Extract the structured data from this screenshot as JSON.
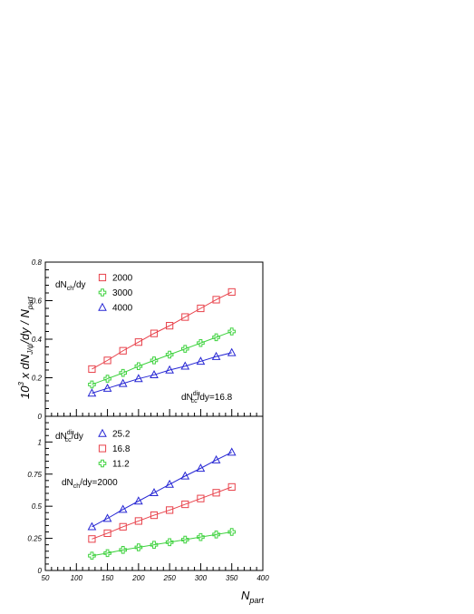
{
  "chart_data": [
    {
      "type": "line",
      "panel": "top",
      "ylabel": "10^3 x dN_J/ψ/dy / N_part",
      "ylabel_parts": {
        "pre": "10",
        "exp": "3",
        "mid": " x dN",
        "sub": "J/ψ",
        "post": "/dy / N",
        "sub2": "part"
      },
      "x": [
        125,
        150,
        175,
        200,
        225,
        250,
        275,
        300,
        325,
        350
      ],
      "xlim": [
        50,
        400
      ],
      "ylim": [
        0,
        0.8
      ],
      "yticks": [
        0,
        0.2,
        0.4,
        0.6,
        0.8
      ],
      "ytick_labels": [
        "0",
        "0.2",
        "0.4",
        "0.6",
        "0.8"
      ],
      "legend_title": {
        "main": "dN",
        "sub": "ch",
        "tail": "/dy"
      },
      "annotation": {
        "main": "dN",
        "sub": "cc",
        "sup": "dir",
        "tail": "/dy=16.8"
      },
      "series": [
        {
          "name": "2000",
          "marker": "square",
          "color": "#e8414a",
          "values": [
            0.245,
            0.29,
            0.34,
            0.385,
            0.43,
            0.47,
            0.515,
            0.56,
            0.605,
            0.645
          ]
        },
        {
          "name": "3000",
          "marker": "cross",
          "color": "#3fd23f",
          "values": [
            0.165,
            0.195,
            0.225,
            0.26,
            0.29,
            0.32,
            0.35,
            0.38,
            0.41,
            0.44
          ]
        },
        {
          "name": "4000",
          "marker": "triangle",
          "color": "#2727d4",
          "values": [
            0.12,
            0.145,
            0.17,
            0.195,
            0.215,
            0.24,
            0.26,
            0.285,
            0.31,
            0.33
          ]
        }
      ]
    },
    {
      "type": "line",
      "panel": "bottom",
      "xlabel": "N_part",
      "xlabel_parts": {
        "main": "N",
        "sub": "part"
      },
      "x": [
        125,
        150,
        175,
        200,
        225,
        250,
        275,
        300,
        325,
        350
      ],
      "xlim": [
        50,
        400
      ],
      "xticks": [
        50,
        100,
        150,
        200,
        250,
        300,
        350,
        400
      ],
      "xtick_labels": [
        "50",
        "100",
        "150",
        "200",
        "250",
        "300",
        "350",
        "400"
      ],
      "ylim": [
        0,
        1.2
      ],
      "yticks": [
        0,
        0.25,
        0.5,
        0.75,
        1
      ],
      "ytick_labels": [
        "0",
        "0.25",
        "0.5",
        "0.75",
        "1"
      ],
      "legend_title": {
        "main": "dN",
        "sub": "cc",
        "sup": "dir",
        "tail": "/dy"
      },
      "annotation": {
        "main": "dN",
        "sub": "ch",
        "tail": "/dy=2000"
      },
      "series": [
        {
          "name": "25.2",
          "marker": "triangle",
          "color": "#2727d4",
          "values": [
            0.34,
            0.405,
            0.475,
            0.54,
            0.605,
            0.67,
            0.735,
            0.795,
            0.86,
            0.92
          ]
        },
        {
          "name": "16.8",
          "marker": "square",
          "color": "#e8414a",
          "values": [
            0.245,
            0.29,
            0.34,
            0.385,
            0.43,
            0.47,
            0.515,
            0.56,
            0.605,
            0.65
          ]
        },
        {
          "name": "11.2",
          "marker": "cross",
          "color": "#3fd23f",
          "values": [
            0.115,
            0.135,
            0.16,
            0.18,
            0.2,
            0.22,
            0.24,
            0.26,
            0.28,
            0.3
          ]
        }
      ]
    }
  ]
}
